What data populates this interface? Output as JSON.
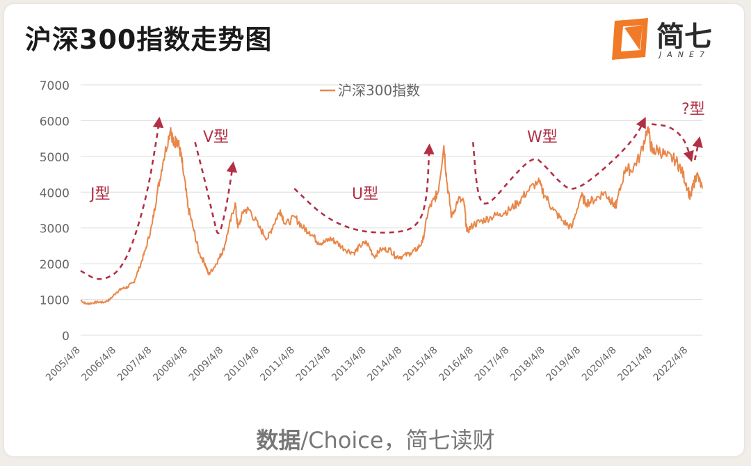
{
  "header": {
    "title": "沪深300指数走势图",
    "logo_name": "简七",
    "logo_sub": "JANE7"
  },
  "source": {
    "label": "数据",
    "text": "/Choice，简七读财"
  },
  "colors": {
    "series": "#e8874a",
    "annotation": "#b23045",
    "grid": "#dddddd",
    "tick": "#666666",
    "logo_orange": "#f07a28"
  },
  "chart_data": {
    "type": "line",
    "title": "沪深300指数走势图",
    "xlabel": "",
    "ylabel": "",
    "ylim": [
      0,
      7000
    ],
    "yticks": [
      0,
      1000,
      2000,
      3000,
      4000,
      5000,
      6000,
      7000
    ],
    "xlim": [
      "2005-04-08",
      "2022-08-31"
    ],
    "xticks": [
      "2005/4/8",
      "2006/4/8",
      "2007/4/8",
      "2008/4/8",
      "2009/4/8",
      "2010/4/8",
      "2011/4/8",
      "2012/4/8",
      "2013/4/8",
      "2014/4/8",
      "2015/4/8",
      "2016/4/8",
      "2017/4/8",
      "2018/4/8",
      "2019/4/8",
      "2020/4/8",
      "2021/4/8",
      "2022/4/8"
    ],
    "grid": true,
    "legend": "top-center",
    "series": [
      {
        "name": "沪深300指数",
        "x": [
          "2005-04-08",
          "2005-06-01",
          "2005-08-01",
          "2005-10-01",
          "2005-12-01",
          "2006-02-01",
          "2006-04-08",
          "2006-06-01",
          "2006-08-01",
          "2006-10-01",
          "2006-12-01",
          "2007-02-01",
          "2007-04-08",
          "2007-06-01",
          "2007-08-01",
          "2007-10-16",
          "2007-11-15",
          "2007-12-15",
          "2008-01-15",
          "2008-02-15",
          "2008-04-08",
          "2008-06-01",
          "2008-08-01",
          "2008-10-01",
          "2008-11-04",
          "2009-01-01",
          "2009-03-01",
          "2009-04-08",
          "2009-06-01",
          "2009-08-04",
          "2009-09-01",
          "2009-11-01",
          "2010-01-01",
          "2010-04-08",
          "2010-07-01",
          "2010-09-01",
          "2010-11-08",
          "2011-01-01",
          "2011-04-08",
          "2011-07-01",
          "2011-09-01",
          "2011-12-01",
          "2012-02-01",
          "2012-04-08",
          "2012-06-01",
          "2012-09-01",
          "2012-12-01",
          "2013-02-01",
          "2013-04-08",
          "2013-06-25",
          "2013-09-01",
          "2013-12-01",
          "2014-02-01",
          "2014-04-08",
          "2014-07-01",
          "2014-09-01",
          "2014-11-01",
          "2014-12-31",
          "2015-03-01",
          "2015-04-08",
          "2015-06-08",
          "2015-07-08",
          "2015-08-26",
          "2015-11-01",
          "2015-12-31",
          "2016-01-28",
          "2016-04-08",
          "2016-07-01",
          "2016-10-01",
          "2017-01-01",
          "2017-04-08",
          "2017-07-01",
          "2017-10-01",
          "2018-01-24",
          "2018-04-08",
          "2018-07-01",
          "2018-10-01",
          "2019-01-03",
          "2019-04-08",
          "2019-06-01",
          "2019-09-01",
          "2019-12-01",
          "2020-02-01",
          "2020-03-23",
          "2020-04-08",
          "2020-07-10",
          "2020-09-01",
          "2020-12-01",
          "2021-02-18",
          "2021-04-08",
          "2021-06-01",
          "2021-09-01",
          "2021-12-01",
          "2022-02-01",
          "2022-04-08",
          "2022-04-26",
          "2022-06-01",
          "2022-07-05",
          "2022-08-31"
        ],
        "values": [
          980,
          880,
          900,
          930,
          920,
          1000,
          1200,
          1300,
          1350,
          1480,
          1900,
          2400,
          3100,
          4000,
          4900,
          5800,
          5300,
          5500,
          5200,
          4700,
          3600,
          3000,
          2300,
          2000,
          1700,
          1900,
          2200,
          2400,
          3000,
          3700,
          3000,
          3500,
          3500,
          3000,
          2700,
          3100,
          3500,
          3100,
          3300,
          3000,
          2900,
          2600,
          2600,
          2700,
          2600,
          2400,
          2300,
          2500,
          2600,
          2200,
          2400,
          2400,
          2200,
          2200,
          2300,
          2400,
          2600,
          3500,
          3800,
          4000,
          5300,
          4300,
          3300,
          3800,
          3700,
          2900,
          3100,
          3200,
          3300,
          3400,
          3500,
          3700,
          4000,
          4300,
          3900,
          3500,
          3200,
          3000,
          3900,
          3700,
          3800,
          4000,
          3800,
          3600,
          3700,
          4700,
          4600,
          5000,
          5800,
          5100,
          5200,
          5000,
          4900,
          4600,
          4100,
          3800,
          4200,
          4500,
          4100
        ]
      }
    ],
    "annotations": [
      {
        "label": "J型",
        "path": [
          [
            "2005-04-08",
            1800
          ],
          [
            "2005-11-01",
            1480
          ],
          [
            "2006-07-01",
            1900
          ],
          [
            "2007-02-01",
            3700
          ],
          [
            "2007-06-01",
            5600
          ],
          [
            "2007-06-20",
            6050
          ]
        ]
      },
      {
        "label": "V型",
        "path": [
          [
            "2008-06-20",
            5400
          ],
          [
            "2008-10-01",
            4300
          ],
          [
            "2009-01-01",
            3200
          ],
          [
            "2009-02-15",
            2700
          ],
          [
            "2009-05-01",
            3500
          ],
          [
            "2009-07-15",
            4800
          ]
        ]
      },
      {
        "label": "U型",
        "path": [
          [
            "2011-04-01",
            4100
          ],
          [
            "2012-02-01",
            3300
          ],
          [
            "2013-01-01",
            2900
          ],
          [
            "2014-01-01",
            2850
          ],
          [
            "2014-09-01",
            3000
          ],
          [
            "2014-12-15",
            3700
          ],
          [
            "2015-01-10",
            5300
          ]
        ]
      },
      {
        "label": "W型",
        "path": [
          [
            "2016-04-01",
            5400
          ],
          [
            "2016-05-15",
            3900
          ],
          [
            "2016-08-15",
            3550
          ],
          [
            "2017-06-01",
            4500
          ],
          [
            "2017-12-15",
            5000
          ],
          [
            "2018-03-15",
            4800
          ],
          [
            "2018-10-01",
            4200
          ],
          [
            "2019-01-15",
            4050
          ],
          [
            "2019-07-01",
            4300
          ],
          [
            "2020-04-01",
            4950
          ],
          [
            "2020-11-01",
            5600
          ],
          [
            "2021-01-20",
            6050
          ]
        ]
      },
      {
        "label": "?型",
        "path": [
          [
            "2021-04-01",
            5900
          ],
          [
            "2021-10-01",
            5850
          ],
          [
            "2022-03-01",
            5500
          ],
          [
            "2022-05-10",
            4900
          ]
        ]
      },
      {
        "label": "",
        "path": [
          [
            "2022-06-15",
            4900
          ],
          [
            "2022-08-01",
            5500
          ]
        ]
      }
    ]
  }
}
